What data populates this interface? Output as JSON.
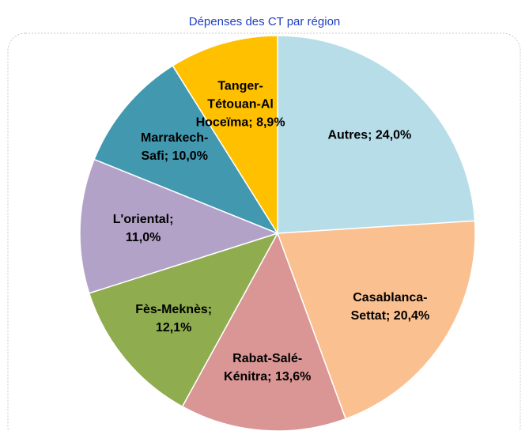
{
  "chart_data": {
    "type": "pie",
    "title": "Dépenses des CT par région",
    "categories": [
      "Autres",
      "Casablanca-Settat",
      "Rabat-Salé-Kénitra",
      "Fès-Meknès",
      "L'oriental",
      "Marrakech-Safi",
      "Tanger-Tétouan-Al Hoceïma"
    ],
    "values": [
      24.0,
      20.4,
      13.6,
      12.1,
      11.0,
      10.0,
      8.9
    ],
    "value_labels": [
      "24,0%",
      "20,4%",
      "13,6%",
      "12,1%",
      "11,0%",
      "10,0%",
      "8,9%"
    ],
    "label_separator": ";",
    "colors": [
      "#b7dde8",
      "#fac090",
      "#d99694",
      "#8fac4f",
      "#b3a2c7",
      "#4198af",
      "#ffc000"
    ]
  }
}
